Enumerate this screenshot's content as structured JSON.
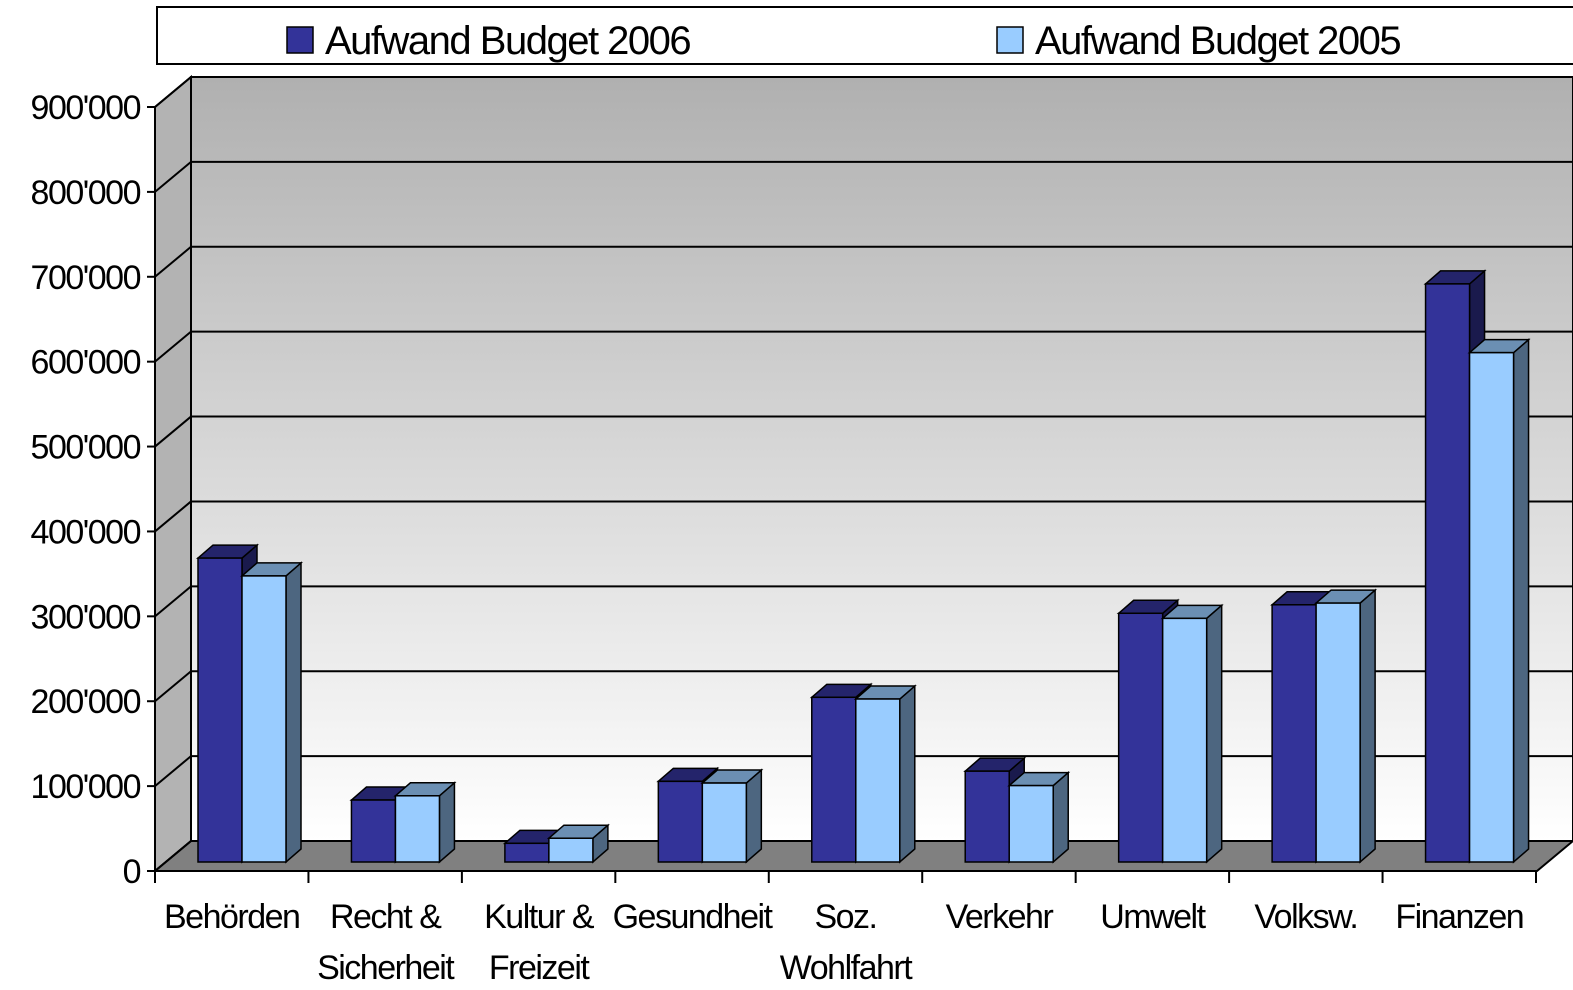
{
  "chart_data": {
    "type": "bar3d",
    "categories": [
      [
        "Behörden"
      ],
      [
        "Recht &",
        "Sicherheit"
      ],
      [
        "Kultur &",
        "Freizeit"
      ],
      [
        "Gesundheit"
      ],
      [
        "Soz.",
        "Wohlfahrt"
      ],
      [
        "Verkehr"
      ],
      [
        "Umwelt"
      ],
      [
        "Volksw."
      ],
      [
        "Finanzen"
      ]
    ],
    "series": [
      {
        "name": "Aufwand Budget 2006",
        "color": "#333399",
        "values": [
          358000,
          73000,
          22000,
          95000,
          194000,
          107000,
          293000,
          303000,
          681000
        ]
      },
      {
        "name": "Aufwand Budget 2005",
        "color": "#99ccff",
        "values": [
          337000,
          78000,
          28000,
          93000,
          192000,
          90000,
          287000,
          305000,
          600000
        ]
      }
    ],
    "ylim": [
      0,
      900000
    ],
    "yticks": [
      0,
      {
        "value": 100000,
        "label": "100'000"
      },
      {
        "value": 200000,
        "label": "200'000"
      },
      {
        "value": 300000,
        "label": "300'000"
      },
      {
        "value": 400000,
        "label": "400'000"
      },
      {
        "value": 500000,
        "label": "500'000"
      },
      {
        "value": 600000,
        "label": "600'000"
      },
      {
        "value": 700000,
        "label": "700'000"
      },
      {
        "value": 800000,
        "label": "800'000"
      },
      {
        "value": 900000,
        "label": "900'000"
      }
    ],
    "grid": true,
    "legend": "top"
  }
}
